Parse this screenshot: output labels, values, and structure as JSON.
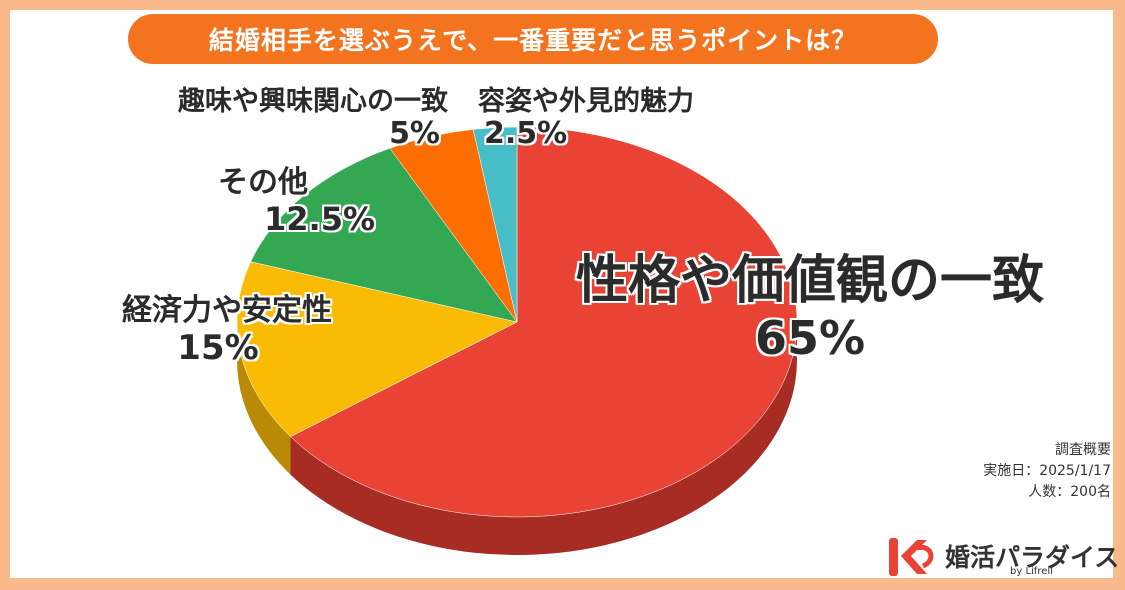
{
  "title": "結婚相手を選ぶうえで、一番重要だと思うポイントは？",
  "chart_data": {
    "type": "pie",
    "slices": [
      {
        "label": "性格や価値観の一致",
        "value": 65,
        "value_label": "65%",
        "color": "#e84334",
        "side_color": "#a62c24"
      },
      {
        "label": "経済力や安定性",
        "value": 15,
        "value_label": "15%",
        "color": "#fabb05",
        "side_color": "#b88a05"
      },
      {
        "label": "その他",
        "value": 12.5,
        "value_label": "12.5%",
        "color": "#34a753",
        "side_color": "#24773b"
      },
      {
        "label": "趣味や興味関心の一致",
        "value": 5,
        "value_label": "5%",
        "color": "#fc6d02",
        "side_color": "#b24d02"
      },
      {
        "label": "容姿や外見的魅力",
        "value": 2.5,
        "value_label": "2.5%",
        "color": "#47bdc7",
        "side_color": "#32858c"
      }
    ]
  },
  "survey": {
    "heading": "調査概要",
    "date": "実施日：2025/1/17",
    "count": "人数：200名"
  },
  "logo": {
    "name": "婚活パラダイス",
    "sub": "by Lifrell",
    "colors": {
      "mark": "#e84334"
    }
  }
}
